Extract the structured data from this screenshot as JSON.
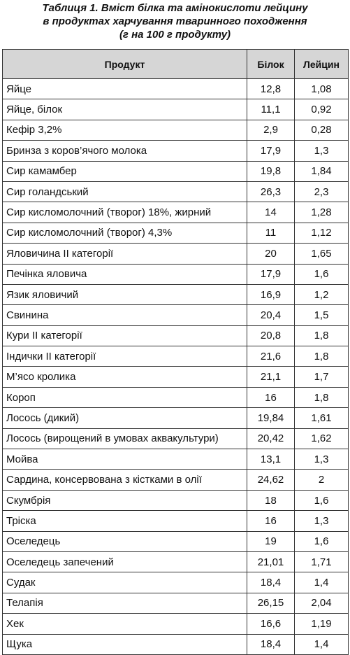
{
  "header": {
    "title_lines": [
      "Таблиця 1. Вміст білка та амінокислоти лейцину",
      "в продуктах харчування тваринного походження",
      "(г на 100 г продукту)"
    ]
  },
  "table": {
    "columns": [
      "Продукт",
      "Білок",
      "Лейцин"
    ],
    "rows": [
      [
        "Яйце",
        "12,8",
        "1,08"
      ],
      [
        "Яйце, білок",
        "11,1",
        "0,92"
      ],
      [
        "Кефір 3,2%",
        "2,9",
        "0,28"
      ],
      [
        "Бринза з коров’ячого молока",
        "17,9",
        "1,3"
      ],
      [
        "Сир камамбер",
        "19,8",
        "1,84"
      ],
      [
        "Сир голандський",
        "26,3",
        "2,3"
      ],
      [
        "Сир кисломолочний (творог) 18%, жирний",
        "14",
        "1,28"
      ],
      [
        "Сир кисломолочний (творог) 4,3%",
        "11",
        "1,12"
      ],
      [
        "Яловичина ІІ категорії",
        "20",
        "1,65"
      ],
      [
        "Печінка яловича",
        "17,9",
        "1,6"
      ],
      [
        "Язик яловичий",
        "16,9",
        "1,2"
      ],
      [
        "Свинина",
        "20,4",
        "1,5"
      ],
      [
        "Кури ІІ категорії",
        "20,8",
        "1,8"
      ],
      [
        "Індички ІІ категорії",
        "21,6",
        "1,8"
      ],
      [
        "М’ясо кролика",
        "21,1",
        "1,7"
      ],
      [
        "Короп",
        "16",
        "1,8"
      ],
      [
        "Лосось (дикий)",
        "19,84",
        "1,61"
      ],
      [
        "Лосось (вирощений в умовах аквакультури)",
        "20,42",
        "1,62"
      ],
      [
        "Мойва",
        "13,1",
        "1,3"
      ],
      [
        "Сардина, консервована з кістками в олії",
        "24,62",
        "2"
      ],
      [
        "Скумбрія",
        "18",
        "1,6"
      ],
      [
        "Тріска",
        "16",
        "1,3"
      ],
      [
        "Оселедець",
        "19",
        "1,6"
      ],
      [
        "Оселедець запечений",
        "21,01",
        "1,71"
      ],
      [
        "Судак",
        "18,4",
        "1,4"
      ],
      [
        "Телапія",
        "26,15",
        "2,04"
      ],
      [
        "Хек",
        "16,6",
        "1,19"
      ],
      [
        "Щука",
        "18,4",
        "1,4"
      ]
    ]
  }
}
